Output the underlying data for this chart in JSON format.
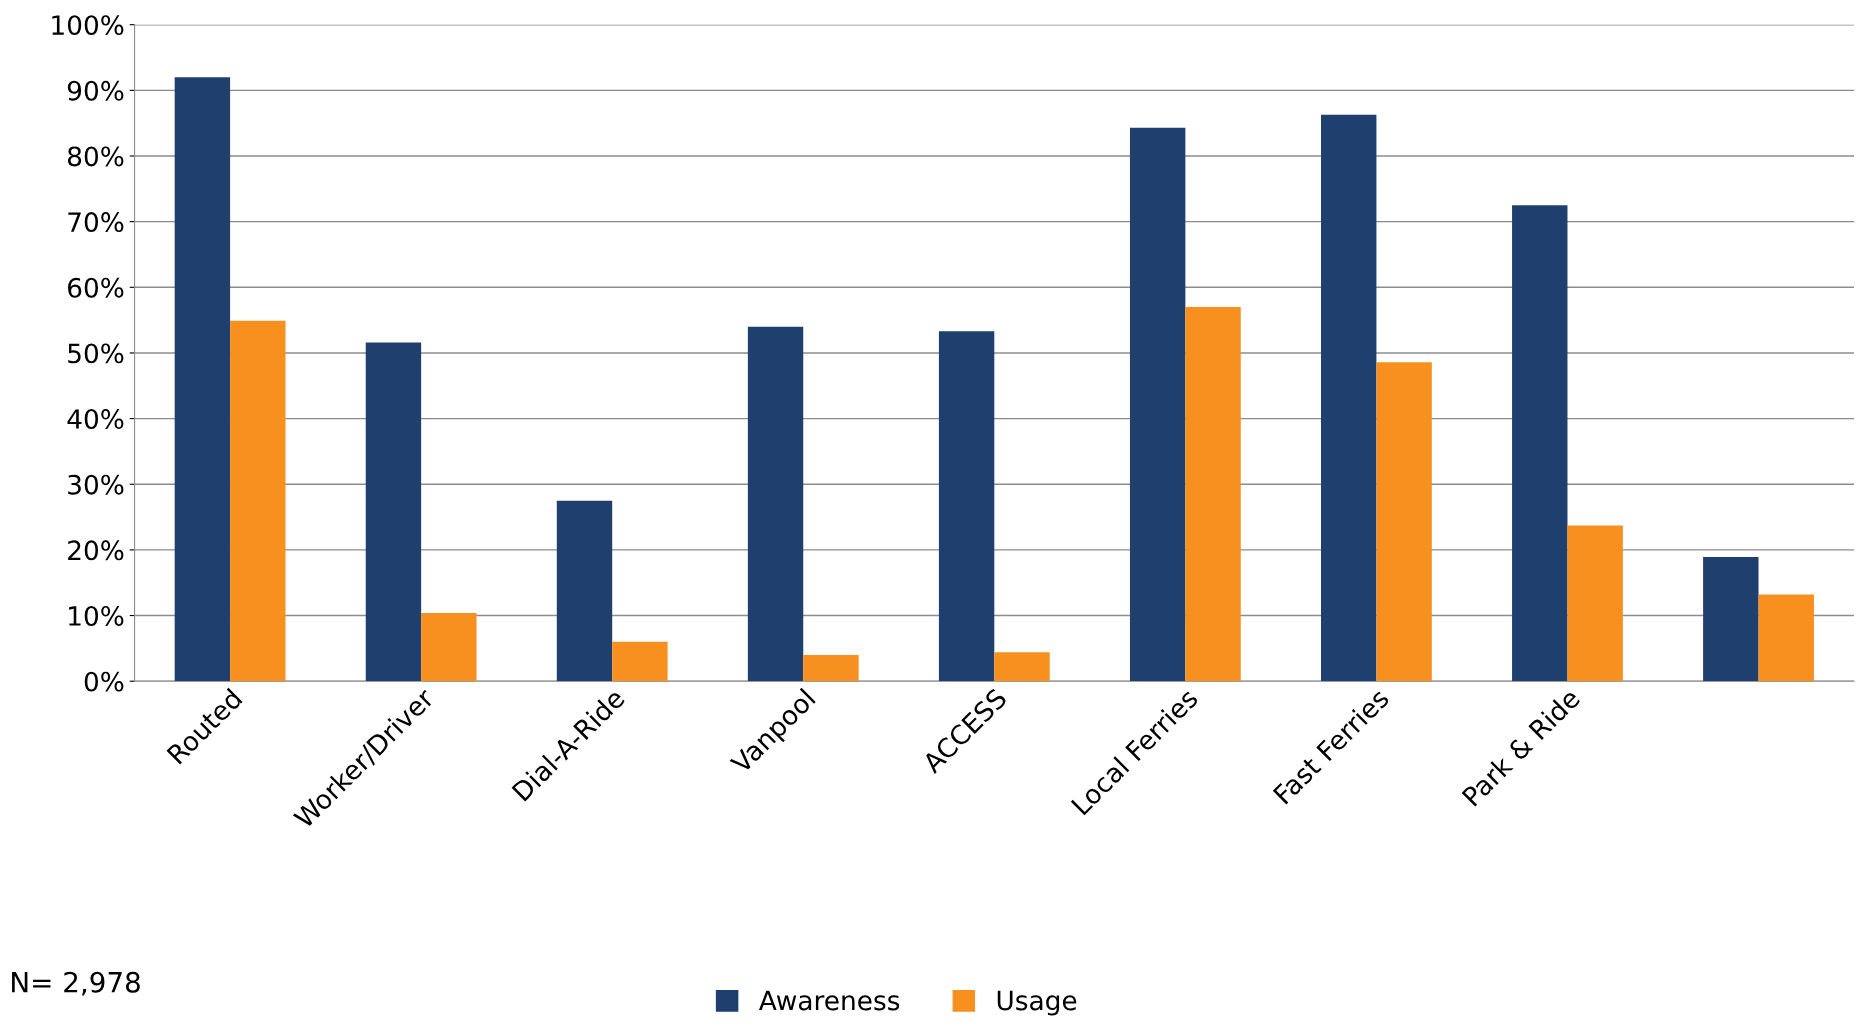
{
  "chart_data": {
    "type": "bar",
    "categories": [
      "Routed",
      "Worker/Driver",
      "Dial-A-Ride",
      "Vanpool",
      "ACCESS",
      "Local Ferries",
      "Fast Ferries",
      "Park & Ride",
      null
    ],
    "series": [
      {
        "name": "Awareness",
        "color": "#1f3f6e",
        "values": [
          92.0,
          51.6,
          27.5,
          54.0,
          53.3,
          84.3,
          86.3,
          72.5,
          18.9
        ]
      },
      {
        "name": "Usage",
        "color": "#f7901e",
        "values": [
          54.9,
          10.4,
          6.0,
          4.0,
          4.4,
          57.0,
          48.6,
          23.7,
          13.2
        ]
      }
    ],
    "ylim": [
      0,
      100
    ],
    "yticks": [
      {
        "value": 0,
        "label": "0%"
      },
      {
        "value": 10,
        "label": "10%"
      },
      {
        "value": 20,
        "label": "20%"
      },
      {
        "value": 30,
        "label": "30%"
      },
      {
        "value": 40,
        "label": "40%"
      },
      {
        "value": 50,
        "label": "50%"
      },
      {
        "value": 60,
        "label": "60%"
      },
      {
        "value": 70,
        "label": "70%"
      },
      {
        "value": 80,
        "label": "80%"
      },
      {
        "value": 90,
        "label": "90%"
      },
      {
        "value": 100,
        "label": "100%"
      }
    ],
    "grid": "y",
    "legend": "bottom",
    "annotations": [
      "N= 2,978"
    ]
  }
}
